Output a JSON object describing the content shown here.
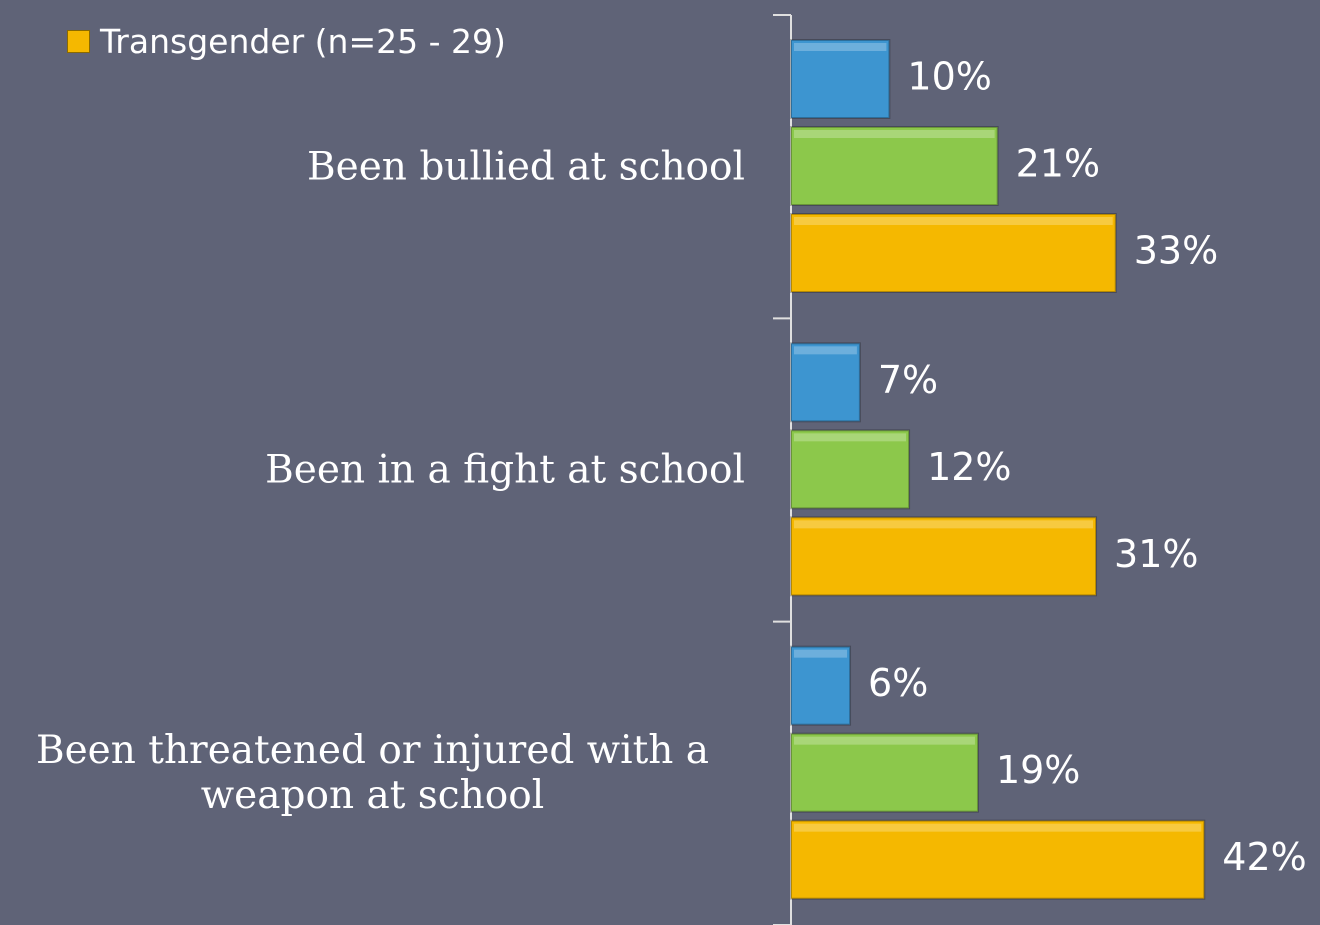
{
  "chart_data": {
    "type": "barh",
    "categories": [
      "Been bullied at school",
      "Been in a fight at school",
      "Been threatened or injured with a weapon at school"
    ],
    "series": [
      {
        "color": "#3d95d0",
        "values": [
          10,
          7,
          6
        ],
        "value_labels": [
          "10%",
          "7%",
          "6%"
        ]
      },
      {
        "color": "#8cc84b",
        "values": [
          21,
          12,
          19
        ],
        "value_labels": [
          "21%",
          "12%",
          "19%"
        ]
      },
      {
        "name": "Transgender (n=25 - 29)",
        "color": "#f5b800",
        "values": [
          33,
          31,
          42
        ],
        "value_labels": [
          "33%",
          "31%",
          "42%"
        ]
      }
    ],
    "xlim": [
      0,
      50
    ],
    "legend": "top-left"
  }
}
